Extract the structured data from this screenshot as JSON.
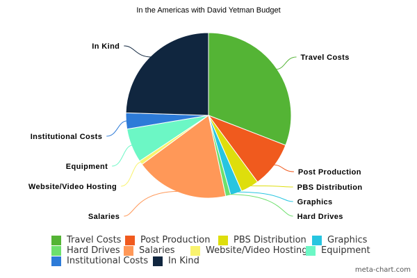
{
  "chart_data": {
    "type": "pie",
    "title": "In the Americas with David Yetman Budget",
    "categories": [
      "Travel Costs",
      "Post Production",
      "PBS Distribution",
      "Graphics",
      "Hard Drives",
      "Salaries",
      "Website/Video Hosting",
      "Equipment",
      "Institutional Costs",
      "In Kind"
    ],
    "values": [
      31.5,
      9.2,
      3.6,
      2.3,
      1.0,
      18.6,
      0.8,
      6.8,
      3.2,
      25.0
    ],
    "colors": [
      "#54b435",
      "#f05a1e",
      "#dede0c",
      "#27c5e0",
      "#6de06d",
      "#ff9858",
      "#f9f36e",
      "#6cf7c5",
      "#2d7bd8",
      "#10263f"
    ],
    "legend_position": "bottom",
    "legend": [
      "Travel Costs",
      "Post Production",
      "PBS Distribution",
      "Graphics",
      "Hard Drives",
      "Salaries",
      "Website/Video Hosting",
      "Equipment",
      "Institutional Costs",
      "In Kind"
    ]
  },
  "credit": "meta-chart.com"
}
